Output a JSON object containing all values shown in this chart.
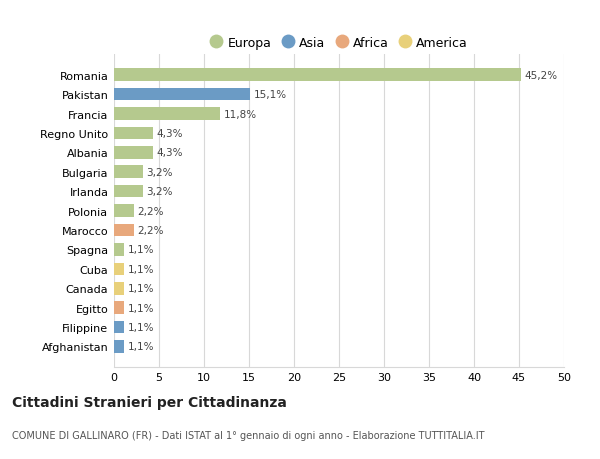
{
  "countries": [
    "Romania",
    "Pakistan",
    "Francia",
    "Regno Unito",
    "Albania",
    "Bulgaria",
    "Irlanda",
    "Polonia",
    "Marocco",
    "Spagna",
    "Cuba",
    "Canada",
    "Egitto",
    "Filippine",
    "Afghanistan"
  ],
  "values": [
    45.2,
    15.1,
    11.8,
    4.3,
    4.3,
    3.2,
    3.2,
    2.2,
    2.2,
    1.1,
    1.1,
    1.1,
    1.1,
    1.1,
    1.1
  ],
  "labels": [
    "45,2%",
    "15,1%",
    "11,8%",
    "4,3%",
    "4,3%",
    "3,2%",
    "3,2%",
    "2,2%",
    "2,2%",
    "1,1%",
    "1,1%",
    "1,1%",
    "1,1%",
    "1,1%",
    "1,1%"
  ],
  "continents": [
    "Europa",
    "Asia",
    "Europa",
    "Europa",
    "Europa",
    "Europa",
    "Europa",
    "Europa",
    "Africa",
    "Europa",
    "America",
    "America",
    "Africa",
    "Asia",
    "Asia"
  ],
  "colors": {
    "Europa": "#b5c98e",
    "Asia": "#6b9bc5",
    "Africa": "#e8a87c",
    "America": "#e8d07a"
  },
  "xlim": [
    0,
    50
  ],
  "xticks": [
    0,
    5,
    10,
    15,
    20,
    25,
    30,
    35,
    40,
    45,
    50
  ],
  "title": "Cittadini Stranieri per Cittadinanza",
  "subtitle": "COMUNE DI GALLINARO (FR) - Dati ISTAT al 1° gennaio di ogni anno - Elaborazione TUTTITALIA.IT",
  "background_color": "#ffffff",
  "grid_color": "#d8d8d8",
  "legend_order": [
    "Europa",
    "Asia",
    "Africa",
    "America"
  ]
}
